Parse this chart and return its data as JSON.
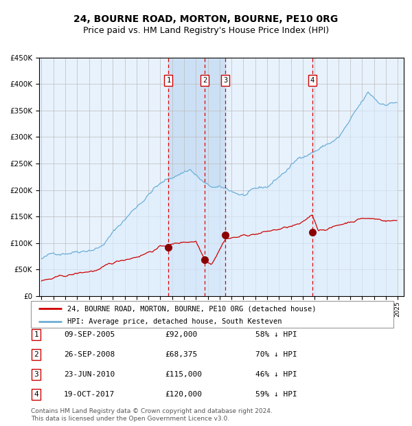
{
  "title": "24, BOURNE ROAD, MORTON, BOURNE, PE10 0RG",
  "subtitle": "Price paid vs. HM Land Registry's House Price Index (HPI)",
  "legend_line1": "24, BOURNE ROAD, MORTON, BOURNE, PE10 0RG (detached house)",
  "legend_line2": "HPI: Average price, detached house, South Kesteven",
  "footer": "Contains HM Land Registry data © Crown copyright and database right 2024.\nThis data is licensed under the Open Government Licence v3.0.",
  "transactions": [
    {
      "num": 1,
      "date": "09-SEP-2005",
      "price": 92000,
      "pct": "58% ↓ HPI",
      "date_dec": 2005.69
    },
    {
      "num": 2,
      "date": "26-SEP-2008",
      "price": 68375,
      "pct": "70% ↓ HPI",
      "date_dec": 2008.74
    },
    {
      "num": 3,
      "date": "23-JUN-2010",
      "price": 115000,
      "pct": "46% ↓ HPI",
      "date_dec": 2010.48
    },
    {
      "num": 4,
      "date": "19-OCT-2017",
      "price": 120000,
      "pct": "59% ↓ HPI",
      "date_dec": 2017.8
    }
  ],
  "hpi_color": "#6baed6",
  "hpi_fill_color": "#ddeeff",
  "chart_bg_color": "#e8f2fc",
  "price_color": "#cc0000",
  "transaction_marker_color": "#8b0000",
  "dashed_line_color": "#dd0000",
  "grid_color": "#bbbbbb",
  "background_color": "#ffffff",
  "title_fontsize": 10,
  "subtitle_fontsize": 9,
  "ylim": [
    0,
    450000
  ],
  "xlim_start": 1994.8,
  "xlim_end": 2025.5,
  "ytick_step": 50000
}
